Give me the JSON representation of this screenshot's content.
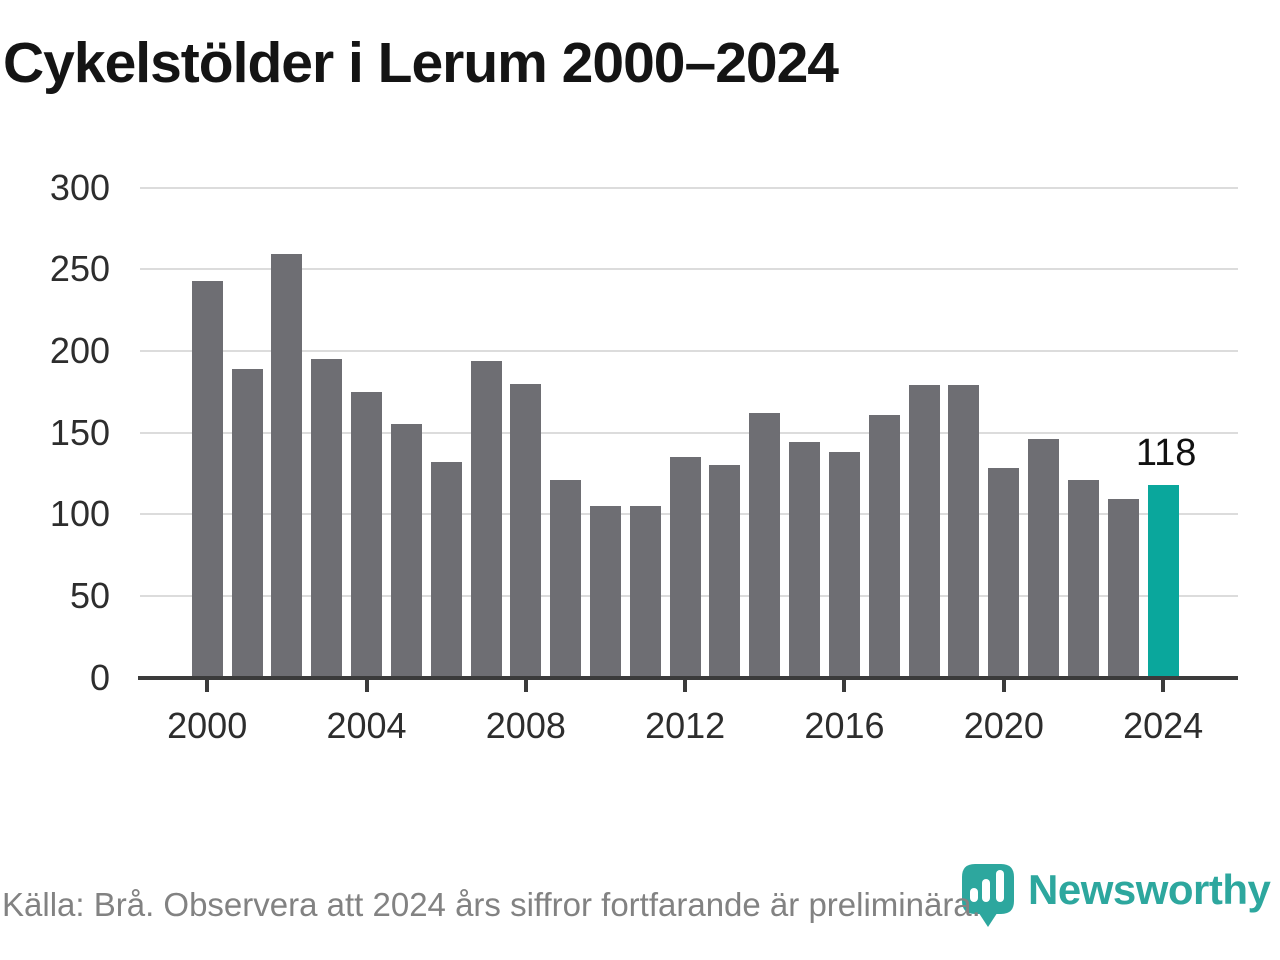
{
  "title": "Cykelstölder i Lerum 2000–2024",
  "chart_data": {
    "type": "bar",
    "title": "Cykelstölder i Lerum 2000–2024",
    "categories": [
      2000,
      2001,
      2002,
      2003,
      2004,
      2005,
      2006,
      2007,
      2008,
      2009,
      2010,
      2011,
      2012,
      2013,
      2014,
      2015,
      2016,
      2017,
      2018,
      2019,
      2020,
      2021,
      2022,
      2023,
      2024
    ],
    "values": [
      243,
      189,
      259,
      195,
      175,
      155,
      132,
      194,
      180,
      121,
      105,
      105,
      135,
      130,
      162,
      144,
      138,
      161,
      179,
      179,
      128,
      146,
      121,
      109,
      118
    ],
    "xlabel": "",
    "ylabel": "",
    "ylim": [
      0,
      300
    ],
    "yticks": [
      0,
      50,
      100,
      150,
      200,
      250,
      300
    ],
    "xtick_labels": [
      "2000",
      "2004",
      "2008",
      "2012",
      "2016",
      "2020",
      "2024"
    ],
    "grid": true,
    "legend": "none",
    "bar_color": "#6e6e73",
    "highlight_color": "#0aa79c",
    "highlight": {
      "category": 2024,
      "value": 118,
      "label": "118"
    }
  },
  "footer": {
    "source_note": "Källa: Brå. Observera att 2024 års siffror fortfarande är preliminära."
  },
  "branding": {
    "name": "Newsworthy",
    "color": "#2da79e",
    "icon": "newsworthy-bubble-chart-icon"
  }
}
